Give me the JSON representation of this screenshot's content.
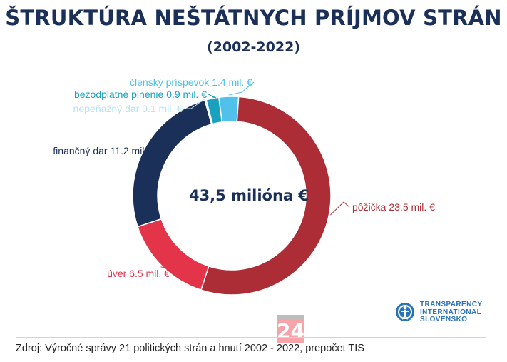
{
  "title": "ŠTRUKTÚRA NEŠTÁTNYCH PRÍJMOV STRÁN",
  "subtitle": "(2002-2022)",
  "chart_data": {
    "type": "pie",
    "donut": true,
    "center_label": "43,5 milióna €",
    "slices": [
      {
        "label": "členský príspevok",
        "value": 1.4,
        "label_text": "členský príspevok 1.4 mil. €",
        "color": "#4fc1ea"
      },
      {
        "label": "pôžička",
        "value": 23.5,
        "label_text": "pôžička 23.5 mil. €",
        "color": "#ac2d36"
      },
      {
        "label": "úver",
        "value": 6.5,
        "label_text": "úver 6.5 mil. €",
        "color": "#e3344a"
      },
      {
        "label": "finančný dar",
        "value": 11.2,
        "label_text": "finančný dar 11.2 mil. €",
        "color": "#1b3058"
      },
      {
        "label": "nepeňažný dar",
        "value": 0.1,
        "label_text": "nepeňažný dar 0.1 mil. €",
        "color": "#b8e3f2"
      },
      {
        "label": "bezodplatné plnenie",
        "value": 0.9,
        "label_text": "bezodplatné plnenie 0.9 mil. €",
        "color": "#1aa1bf"
      }
    ]
  },
  "logo": {
    "lines": [
      "TRANSPARENCY",
      "INTERNATIONAL",
      "SLOVENSKO"
    ]
  },
  "badge": {
    "text": "24"
  },
  "source": "Zdroj: Výročné správy 21 politických strán a hnutí 2002 - 2022, prepočet TIS"
}
